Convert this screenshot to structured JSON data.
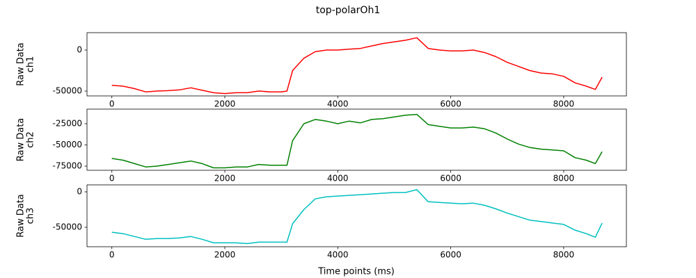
{
  "title": "top-polarOh1",
  "xlabel": "Time points (ms)",
  "chart_data": [
    {
      "type": "line",
      "ylabel": [
        "Raw Data",
        "ch1"
      ],
      "color": "#ff0000",
      "x": [
        0,
        200,
        400,
        600,
        800,
        1000,
        1200,
        1400,
        1600,
        1800,
        2000,
        2200,
        2400,
        2600,
        2800,
        3000,
        3100,
        3200,
        3400,
        3600,
        3800,
        4000,
        4200,
        4400,
        4600,
        4800,
        5000,
        5200,
        5400,
        5600,
        5800,
        6000,
        6200,
        6400,
        6600,
        6800,
        7000,
        7200,
        7400,
        7600,
        7800,
        8000,
        8200,
        8400,
        8560,
        8680
      ],
      "values": [
        -43000,
        -44000,
        -47000,
        -51000,
        -50000,
        -49500,
        -48500,
        -46000,
        -49000,
        -52000,
        -53000,
        -52000,
        -52000,
        -50000,
        -51000,
        -51000,
        -50000,
        -25000,
        -10000,
        -2000,
        0,
        0,
        1000,
        2000,
        5000,
        8000,
        10000,
        12000,
        15000,
        2000,
        0,
        -1000,
        -1000,
        0,
        -3000,
        -8000,
        -15000,
        -20000,
        -25000,
        -28000,
        -29000,
        -32000,
        -40000,
        -44000,
        -48000,
        -33000
      ],
      "xlim": [
        -440,
        9110
      ],
      "xticks": [
        0,
        2000,
        4000,
        6000,
        8000
      ],
      "ylim": [
        -55900,
        21200
      ],
      "yticks": [
        -50000,
        0
      ]
    },
    {
      "type": "line",
      "ylabel": [
        "Raw Data",
        "ch2"
      ],
      "color": "#008000",
      "x": [
        0,
        200,
        400,
        600,
        800,
        1000,
        1200,
        1400,
        1600,
        1800,
        2000,
        2200,
        2400,
        2600,
        2800,
        3000,
        3100,
        3200,
        3400,
        3600,
        3800,
        4000,
        4200,
        4400,
        4600,
        4800,
        5000,
        5200,
        5400,
        5600,
        5800,
        6000,
        6200,
        6400,
        6600,
        6800,
        7000,
        7200,
        7400,
        7600,
        7800,
        8000,
        8200,
        8400,
        8560,
        8680
      ],
      "values": [
        -66000,
        -68000,
        -72000,
        -76000,
        -75000,
        -73000,
        -71000,
        -69000,
        -72000,
        -77000,
        -77000,
        -76000,
        -76000,
        -73000,
        -74000,
        -74000,
        -74000,
        -45000,
        -25000,
        -20000,
        -22000,
        -25000,
        -22000,
        -24000,
        -20000,
        -19000,
        -17000,
        -15000,
        -14000,
        -26000,
        -28000,
        -30000,
        -30000,
        -29000,
        -31000,
        -36000,
        -43000,
        -49000,
        -53000,
        -55000,
        -56000,
        -57000,
        -65000,
        -68000,
        -72000,
        -58000
      ],
      "xlim": [
        -440,
        9110
      ],
      "xticks": [
        0,
        2000,
        4000,
        6000,
        8000
      ],
      "ylim": [
        -79900,
        -7800
      ],
      "yticks": [
        -75000,
        -50000,
        -25000
      ]
    },
    {
      "type": "line",
      "ylabel": [
        "Raw Data",
        "ch3"
      ],
      "color": "#00bfbf",
      "x": [
        0,
        200,
        400,
        600,
        800,
        1000,
        1200,
        1400,
        1600,
        1800,
        2000,
        2200,
        2400,
        2600,
        2800,
        3000,
        3100,
        3200,
        3400,
        3600,
        3800,
        4000,
        4200,
        4400,
        4600,
        4800,
        5000,
        5200,
        5400,
        5600,
        5800,
        6000,
        6200,
        6400,
        6600,
        6800,
        7000,
        7200,
        7400,
        7600,
        7800,
        8000,
        8200,
        8400,
        8560,
        8680
      ],
      "values": [
        -57000,
        -59000,
        -63000,
        -67000,
        -66000,
        -66000,
        -65000,
        -63000,
        -67000,
        -72000,
        -72000,
        -72000,
        -73000,
        -71000,
        -71000,
        -71000,
        -71000,
        -45000,
        -25000,
        -10000,
        -7000,
        -6000,
        -5000,
        -4000,
        -3000,
        -2000,
        -1000,
        -1000,
        3000,
        -14000,
        -15000,
        -16000,
        -17000,
        -16000,
        -19000,
        -24000,
        -30000,
        -35000,
        -40000,
        -42000,
        -44000,
        -46000,
        -54000,
        -59000,
        -64000,
        -44000
      ],
      "xlim": [
        -440,
        9110
      ],
      "xticks": [
        0,
        2000,
        4000,
        6000,
        8000
      ],
      "ylim": [
        -77450,
        9800
      ],
      "yticks": [
        -50000,
        0
      ]
    }
  ]
}
